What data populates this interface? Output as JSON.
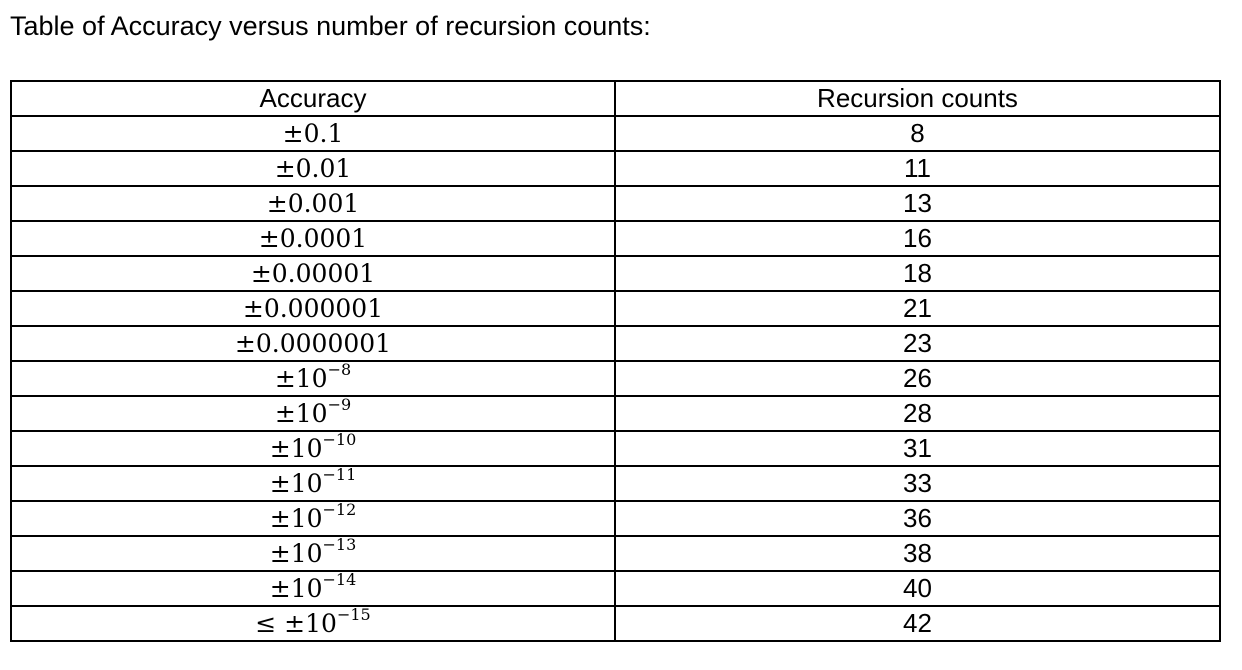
{
  "title": "Table of Accuracy versus number of recursion counts:",
  "table": {
    "headers": [
      "Accuracy",
      "Recursion counts"
    ],
    "rows": [
      {
        "prefix": "±",
        "base": "0.1",
        "exp": "",
        "count": "8"
      },
      {
        "prefix": "±",
        "base": "0.01",
        "exp": "",
        "count": "11"
      },
      {
        "prefix": "±",
        "base": "0.001",
        "exp": "",
        "count": "13"
      },
      {
        "prefix": "±",
        "base": "0.0001",
        "exp": "",
        "count": "16"
      },
      {
        "prefix": "±",
        "base": "0.00001",
        "exp": "",
        "count": "18"
      },
      {
        "prefix": "±",
        "base": "0.000001",
        "exp": "",
        "count": "21"
      },
      {
        "prefix": "±",
        "base": "0.0000001",
        "exp": "",
        "count": "23"
      },
      {
        "prefix": "±",
        "base": "10",
        "exp": "−8",
        "count": "26"
      },
      {
        "prefix": "±",
        "base": "10",
        "exp": "−9",
        "count": "28"
      },
      {
        "prefix": "±",
        "base": "10",
        "exp": "−10",
        "count": "31"
      },
      {
        "prefix": "±",
        "base": "10",
        "exp": "−11",
        "count": "33"
      },
      {
        "prefix": "±",
        "base": "10",
        "exp": "−12",
        "count": "36"
      },
      {
        "prefix": "±",
        "base": "10",
        "exp": "−13",
        "count": "38"
      },
      {
        "prefix": "±",
        "base": "10",
        "exp": "−14",
        "count": "40"
      },
      {
        "prefix": "≤ ±",
        "base": "10",
        "exp": "−15",
        "count": "42"
      }
    ]
  }
}
